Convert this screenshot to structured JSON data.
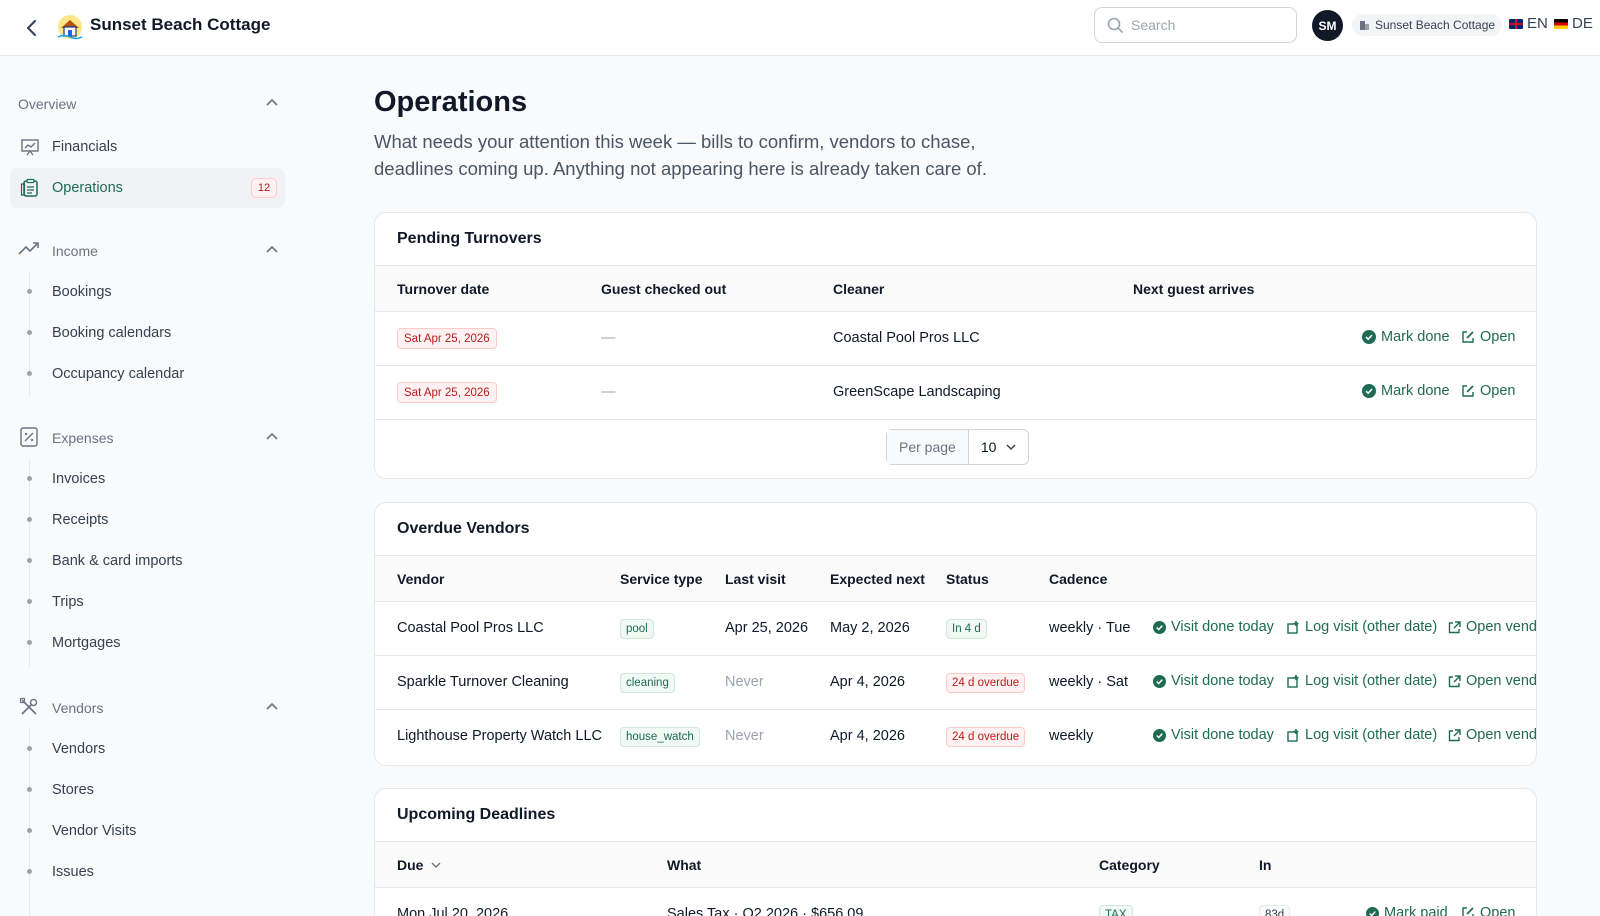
{
  "header": {
    "title": "Sunset Beach Cottage",
    "search_placeholder": "Search",
    "avatar_initials": "SM",
    "property_chip": "Sunset Beach Cottage",
    "lang_en": "EN",
    "lang_de": "DE"
  },
  "sidebar": {
    "overview_label": "Overview",
    "financials": "Financials",
    "operations": "Operations",
    "operations_badge": "12",
    "income_label": "Income",
    "income_items": [
      "Bookings",
      "Booking calendars",
      "Occupancy calendar"
    ],
    "expenses_label": "Expenses",
    "expenses_items": [
      "Invoices",
      "Receipts",
      "Bank & card imports",
      "Trips",
      "Mortgages"
    ],
    "vendors_label": "Vendors",
    "vendors_items": [
      "Vendors",
      "Stores",
      "Vendor Visits",
      "Issues"
    ]
  },
  "page": {
    "title": "Operations",
    "lead": "What needs your attention this week — bills to confirm, vendors to chase, deadlines coming up. Anything not appearing here is already taken care of."
  },
  "turnovers": {
    "title": "Pending Turnovers",
    "headers": [
      "Turnover date",
      "Guest checked out",
      "Cleaner",
      "Next guest arrives"
    ],
    "rows": [
      {
        "date": "Sat Apr 25, 2026",
        "checked_out": "—",
        "cleaner": "Coastal Pool Pros LLC",
        "next": ""
      },
      {
        "date": "Sat Apr 25, 2026",
        "checked_out": "—",
        "cleaner": "GreenScape Landscaping",
        "next": ""
      }
    ],
    "mark_done": "Mark done",
    "open": "Open",
    "per_page_label": "Per page",
    "per_page_value": "10"
  },
  "vendors": {
    "title": "Overdue Vendors",
    "headers": [
      "Vendor",
      "Service type",
      "Last visit",
      "Expected next",
      "Status",
      "Cadence"
    ],
    "rows": [
      {
        "vendor": "Coastal Pool Pros LLC",
        "service": "pool",
        "last": "Apr 25, 2026",
        "next": "May 2, 2026",
        "status": "In 4 d",
        "cadence": "weekly · Tue"
      },
      {
        "vendor": "Sparkle Turnover Cleaning",
        "service": "cleaning",
        "last": "Never",
        "next": "Apr 4, 2026",
        "status": "24 d overdue",
        "cadence": "weekly · Sat"
      },
      {
        "vendor": "Lighthouse Property Watch LLC",
        "service": "house_watch",
        "last": "Never",
        "next": "Apr 4, 2026",
        "status": "24 d overdue",
        "cadence": "weekly"
      }
    ],
    "visit_done": "Visit done today",
    "log_visit": "Log visit (other date)",
    "open_vendor": "Open vend"
  },
  "deadlines": {
    "title": "Upcoming Deadlines",
    "headers": [
      "Due",
      "What",
      "Category",
      "In"
    ],
    "rows": [
      {
        "due": "Mon Jul 20, 2026",
        "what": "Sales Tax · Q2 2026 · $656.09",
        "category": "TAX",
        "in": "83d"
      }
    ],
    "mark_paid": "Mark paid",
    "open": "Open"
  },
  "colors": {
    "accent": "#1e6b54",
    "danger": "#b91c1c",
    "active_bg": "#f0f2f5"
  }
}
